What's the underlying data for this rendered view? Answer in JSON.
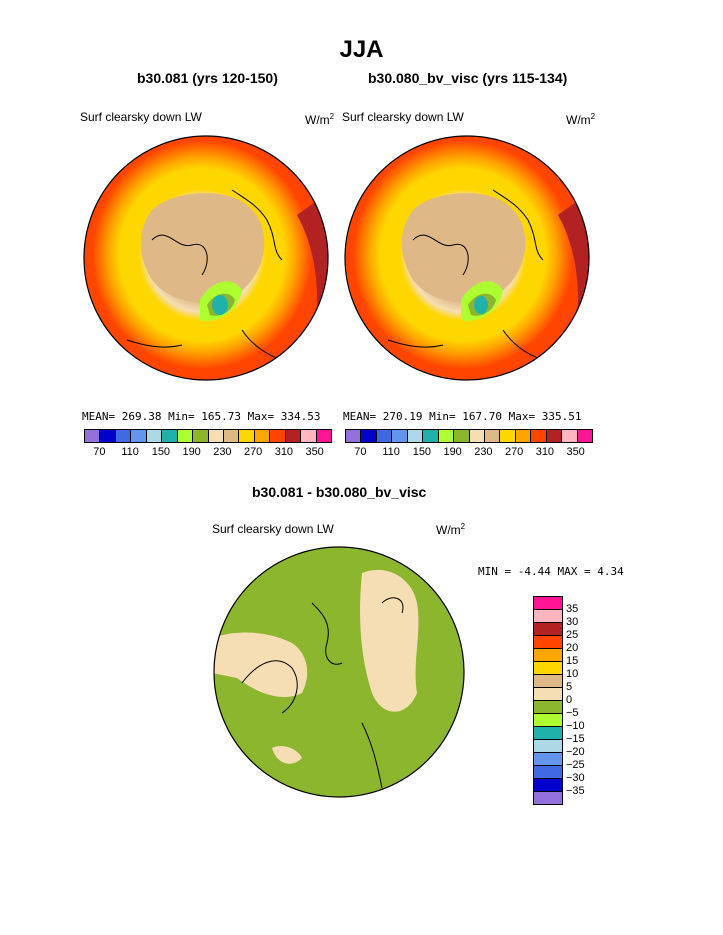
{
  "page": {
    "season": "JJA"
  },
  "panels": [
    {
      "id": "left",
      "case_title": "b30.081 (yrs 120-150)",
      "variable_label": "Surf clearsky down LW",
      "units_base": "W/m",
      "units_exp": "2",
      "stats": {
        "mean_label": "MEAN=",
        "mean": "269.38",
        "min_label": "Min=",
        "min": "165.73",
        "max_label": "Max=",
        "max": "334.53"
      }
    },
    {
      "id": "right",
      "case_title": "b30.080_bv_visc (yrs 115-134)",
      "variable_label": "Surf clearsky down LW",
      "units_base": "W/m",
      "units_exp": "2",
      "stats": {
        "mean_label": "MEAN=",
        "mean": "270.19",
        "min_label": "Min=",
        "min": "167.70",
        "max_label": "Max=",
        "max": "335.51"
      }
    }
  ],
  "difference": {
    "title": "b30.081 - b30.080_bv_visc",
    "variable_label": "Surf clearsky down LW",
    "units_base": "W/m",
    "units_exp": "2",
    "min_label": "MIN =",
    "min": "-4.44",
    "max_label": "MAX =",
    "max": "4.34"
  },
  "chart_data": [
    {
      "type": "heatmap",
      "projection": "polar-stereographic-north",
      "title": "b30.081 (yrs 120-150)",
      "variable": "Surf clearsky down LW",
      "units": "W/m2",
      "color_levels": [
        70,
        90,
        110,
        130,
        150,
        170,
        190,
        210,
        230,
        250,
        270,
        290,
        310,
        330,
        350
      ],
      "tick_labels": [
        "70",
        "110",
        "150",
        "190",
        "230",
        "270",
        "310",
        "350"
      ],
      "colors": [
        "#9370db",
        "#0000cd",
        "#4169e1",
        "#6495ed",
        "#add8e6",
        "#20b2aa",
        "#adff2f",
        "#8db62f",
        "#f5deb3",
        "#deb887",
        "#ffd700",
        "#ffa500",
        "#ff4500",
        "#b22222",
        "#ffb6c1",
        "#ff1493"
      ],
      "mean": 269.38,
      "min": 165.73,
      "max": 334.53
    },
    {
      "type": "heatmap",
      "projection": "polar-stereographic-north",
      "title": "b30.080_bv_visc (yrs 115-134)",
      "variable": "Surf clearsky down LW",
      "units": "W/m2",
      "color_levels": [
        70,
        90,
        110,
        130,
        150,
        170,
        190,
        210,
        230,
        250,
        270,
        290,
        310,
        330,
        350
      ],
      "tick_labels": [
        "70",
        "110",
        "150",
        "190",
        "230",
        "270",
        "310",
        "350"
      ],
      "colors": [
        "#9370db",
        "#0000cd",
        "#4169e1",
        "#6495ed",
        "#add8e6",
        "#20b2aa",
        "#adff2f",
        "#8db62f",
        "#f5deb3",
        "#deb887",
        "#ffd700",
        "#ffa500",
        "#ff4500",
        "#b22222",
        "#ffb6c1",
        "#ff1493"
      ],
      "mean": 270.19,
      "min": 167.7,
      "max": 335.51
    },
    {
      "type": "heatmap",
      "projection": "polar-stereographic-north",
      "title": "b30.081 - b30.080_bv_visc",
      "variable": "Surf clearsky down LW",
      "units": "W/m2",
      "tick_labels": [
        "35",
        "30",
        "25",
        "20",
        "15",
        "10",
        "5",
        "0",
        "−5",
        "−10",
        "−15",
        "−20",
        "−25",
        "−30",
        "−35"
      ],
      "colors": [
        "#ff1493",
        "#ffb6c1",
        "#b22222",
        "#ff4500",
        "#ffa500",
        "#ffd700",
        "#deb887",
        "#f5deb3",
        "#8db62f",
        "#adff2f",
        "#20b2aa",
        "#add8e6",
        "#6495ed",
        "#4169e1",
        "#0000cd",
        "#9370db"
      ],
      "min": -4.44,
      "max": 4.34
    }
  ]
}
